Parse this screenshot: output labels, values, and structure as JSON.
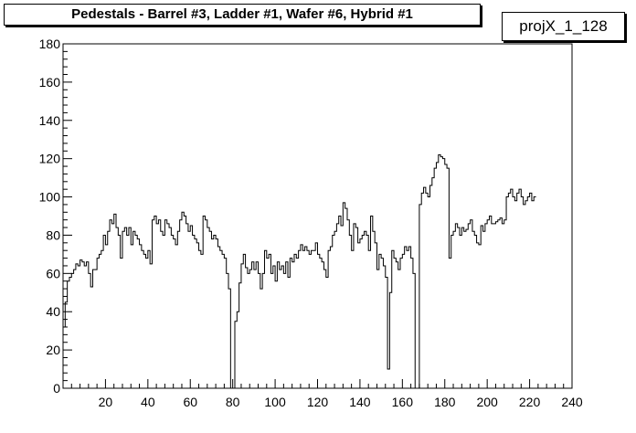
{
  "title": "Pedestals - Barrel #3, Ladder #1, Wafer #6, Hybrid #1",
  "stats_label": "projX_1_128",
  "colors": {
    "line": "#000000",
    "background": "#ffffff"
  },
  "chart_data": {
    "type": "line",
    "style": "step-histogram",
    "title": "Pedestals - Barrel #3, Ladder #1, Wafer #6, Hybrid #1",
    "xlabel": "",
    "ylabel": "",
    "xlim": [
      0,
      240
    ],
    "ylim": [
      0,
      180
    ],
    "x_ticks": [
      20,
      40,
      60,
      80,
      100,
      120,
      140,
      160,
      180,
      200,
      220,
      240
    ],
    "y_ticks": [
      0,
      20,
      40,
      60,
      80,
      100,
      120,
      140,
      160,
      180
    ],
    "grid": false,
    "legend": "none",
    "bin_width": 1,
    "values": [
      32,
      45,
      56,
      58,
      60,
      62,
      65,
      64,
      67,
      66,
      64,
      66,
      60,
      53,
      62,
      62,
      68,
      70,
      72,
      80,
      75,
      82,
      88,
      86,
      91,
      84,
      80,
      68,
      82,
      84,
      80,
      84,
      75,
      82,
      80,
      78,
      75,
      72,
      70,
      68,
      72,
      65,
      88,
      90,
      86,
      88,
      82,
      80,
      88,
      86,
      84,
      80,
      78,
      75,
      82,
      88,
      92,
      90,
      86,
      82,
      85,
      80,
      78,
      76,
      72,
      70,
      90,
      88,
      84,
      82,
      78,
      80,
      78,
      74,
      72,
      70,
      68,
      60,
      52,
      0,
      0,
      35,
      40,
      55,
      65,
      70,
      63,
      60,
      62,
      66,
      62,
      66,
      60,
      52,
      60,
      72,
      68,
      70,
      60,
      64,
      56,
      66,
      62,
      64,
      60,
      66,
      58,
      68,
      66,
      70,
      68,
      72,
      75,
      72,
      74,
      72,
      70,
      72,
      72,
      76,
      70,
      68,
      66,
      62,
      58,
      72,
      74,
      80,
      82,
      86,
      90,
      85,
      97,
      94,
      88,
      80,
      72,
      86,
      84,
      76,
      78,
      80,
      82,
      80,
      72,
      90,
      82,
      76,
      62,
      70,
      68,
      64,
      58,
      10,
      50,
      72,
      68,
      66,
      62,
      68,
      70,
      74,
      72,
      74,
      68,
      60,
      0,
      0,
      96,
      102,
      105,
      102,
      100,
      106,
      110,
      115,
      118,
      122,
      121,
      120,
      117,
      115,
      68,
      80,
      82,
      86,
      84,
      80,
      84,
      82,
      83,
      86,
      88,
      82,
      80,
      76,
      75,
      85,
      82,
      86,
      88,
      90,
      86,
      86,
      87,
      88,
      89,
      86,
      88,
      100,
      102,
      104,
      100,
      98,
      102,
      104,
      100,
      96,
      98,
      100,
      102,
      98,
      100
    ]
  }
}
